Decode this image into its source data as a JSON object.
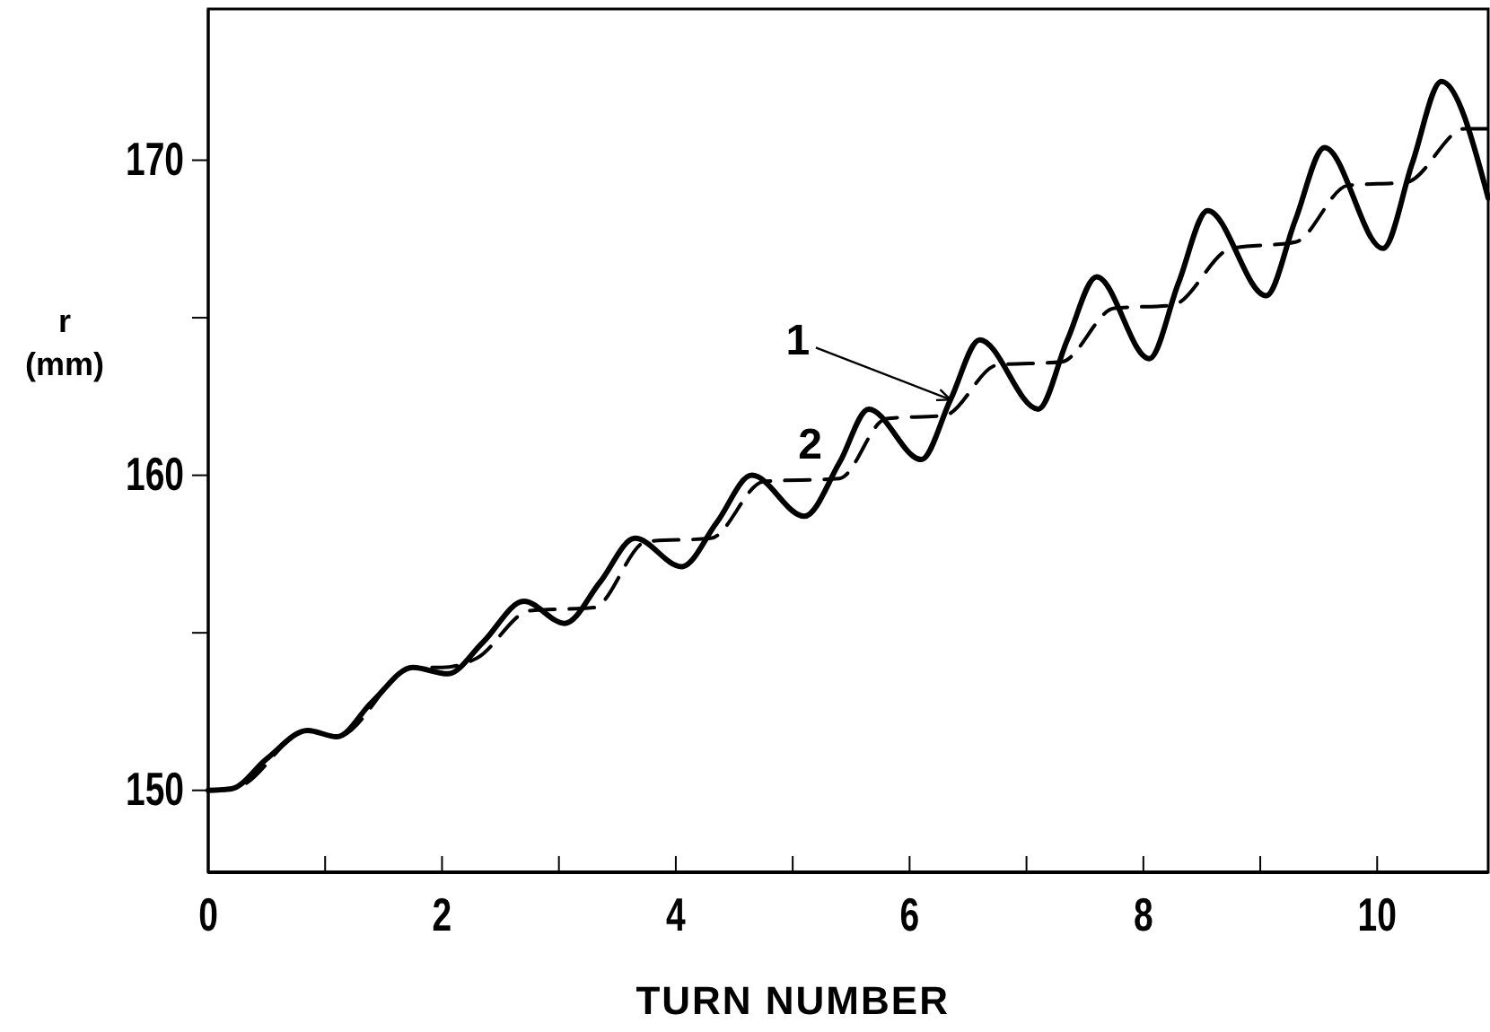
{
  "chart_data": {
    "type": "line",
    "xlabel": "TURN NUMBER",
    "ylabel": "r (mm)",
    "xlim": [
      0,
      10.95
    ],
    "ylim": [
      147.4,
      174.8
    ],
    "xticks": [
      0,
      {
        "value": 1,
        "label": null
      },
      2,
      {
        "value": 3,
        "label": null
      },
      4,
      {
        "value": 5,
        "label": null
      },
      6,
      {
        "value": 7,
        "label": null
      },
      8,
      {
        "value": 9,
        "label": null
      },
      10
    ],
    "yticks": [
      150,
      {
        "value": 155,
        "label": null
      },
      160,
      {
        "value": 165,
        "label": null
      },
      170
    ],
    "grid": false,
    "legend": false,
    "marker": "none",
    "series": [
      {
        "name": "1",
        "color": "#000000",
        "line_style": "solid",
        "x": [
          0,
          0.2,
          0.5,
          0.85,
          1.1,
          1.4,
          1.75,
          2.05,
          2.35,
          2.7,
          3.05,
          3.35,
          3.65,
          4.05,
          4.35,
          4.65,
          5.1,
          5.4,
          5.65,
          6.1,
          6.35,
          6.6,
          7.1,
          7.35,
          7.6,
          8.05,
          8.3,
          8.55,
          9.05,
          9.3,
          9.55,
          10.05,
          10.3,
          10.55,
          10.95
        ],
        "values": [
          150,
          150.05,
          151,
          151.9,
          151.7,
          152.8,
          153.9,
          153.7,
          154.7,
          156.0,
          155.3,
          156.6,
          158.0,
          157.1,
          158.5,
          160.0,
          158.7,
          160.4,
          162.1,
          160.5,
          162.4,
          164.3,
          162.1,
          164.3,
          166.3,
          163.7,
          166.1,
          168.4,
          165.7,
          168.1,
          170.4,
          167.2,
          169.9,
          172.5,
          168.8
        ]
      },
      {
        "name": "2",
        "color": "#000000",
        "line_style": "dashed",
        "x": [
          0,
          0.25,
          0.85,
          1.1,
          1.75,
          2.0,
          2.3,
          2.75,
          3.3,
          3.75,
          4.3,
          4.75,
          5.4,
          5.8,
          6.3,
          6.75,
          7.3,
          7.75,
          8.25,
          8.75,
          9.3,
          9.75,
          10.25,
          10.75,
          10.95
        ],
        "values": [
          150,
          150.1,
          151.9,
          151.7,
          153.9,
          153.9,
          154.2,
          155.7,
          155.8,
          157.9,
          158.0,
          159.8,
          159.9,
          161.8,
          161.9,
          163.5,
          163.6,
          165.3,
          165.4,
          167.2,
          167.4,
          169.2,
          169.3,
          171.0,
          171.0
        ]
      }
    ]
  }
}
